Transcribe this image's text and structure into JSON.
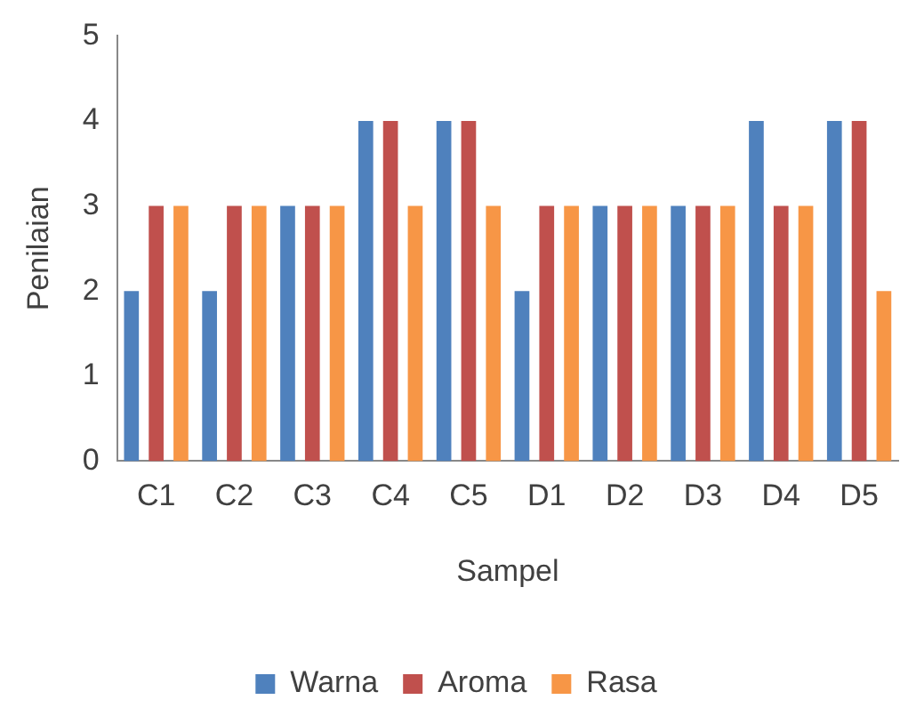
{
  "chart_data": {
    "type": "bar",
    "xlabel": "Sampel",
    "ylabel": "Penilaian",
    "categories": [
      "C1",
      "C2",
      "C3",
      "C4",
      "C5",
      "D1",
      "D2",
      "D3",
      "D4",
      "D5"
    ],
    "series": [
      {
        "name": "Warna",
        "color": "#4f81bd",
        "values": [
          2,
          2,
          3,
          4,
          4,
          2,
          3,
          3,
          4,
          4
        ]
      },
      {
        "name": "Aroma",
        "color": "#c0504d",
        "values": [
          3,
          3,
          3,
          4,
          4,
          3,
          3,
          3,
          3,
          4
        ]
      },
      {
        "name": "Rasa",
        "color": "#f79646",
        "values": [
          3,
          3,
          3,
          3,
          3,
          3,
          3,
          3,
          3,
          2
        ]
      }
    ],
    "ylim": [
      0,
      5
    ],
    "yticks": [
      0,
      1,
      2,
      3,
      4,
      5
    ],
    "grid": false,
    "legend": "bottom"
  }
}
